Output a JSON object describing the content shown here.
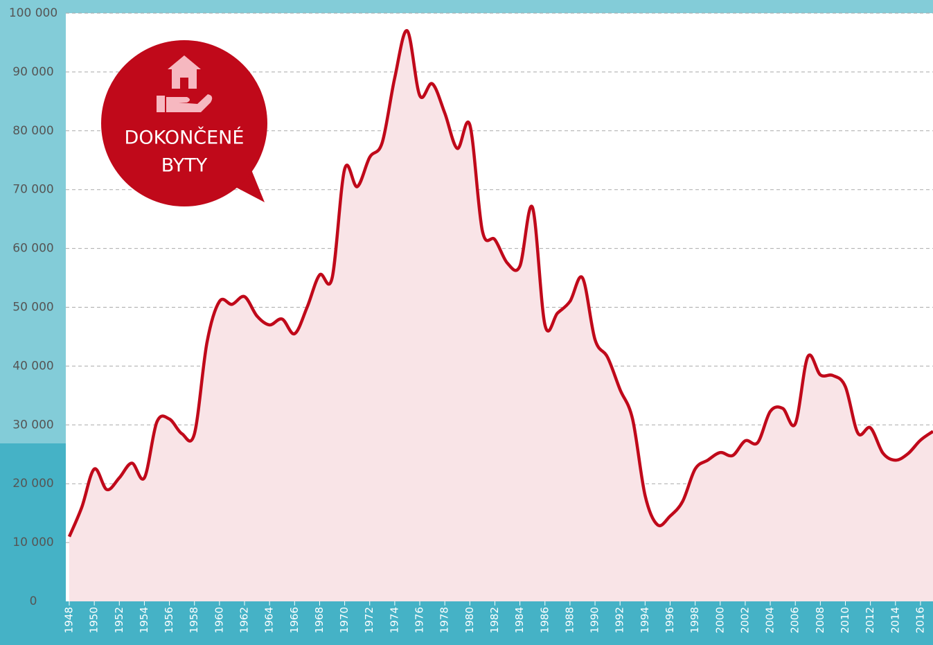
{
  "chart_data": {
    "type": "line",
    "annotation": [
      "DOKONČENÉ",
      "BYTY"
    ],
    "x": [
      1948,
      1949,
      1950,
      1951,
      1952,
      1953,
      1954,
      1955,
      1956,
      1957,
      1958,
      1959,
      1960,
      1961,
      1962,
      1963,
      1964,
      1965,
      1966,
      1967,
      1968,
      1969,
      1970,
      1971,
      1972,
      1973,
      1974,
      1975,
      1976,
      1977,
      1978,
      1979,
      1980,
      1981,
      1982,
      1983,
      1984,
      1985,
      1986,
      1987,
      1988,
      1989,
      1990,
      1991,
      1992,
      1993,
      1994,
      1995,
      1996,
      1997,
      1998,
      1999,
      2000,
      2001,
      2002,
      2003,
      2004,
      2005,
      2006,
      2007,
      2008,
      2009,
      2010,
      2011,
      2012,
      2013,
      2014,
      2015,
      2016,
      2017
    ],
    "values": [
      11000,
      16000,
      22500,
      19000,
      21000,
      23500,
      21000,
      30500,
      31000,
      28500,
      28500,
      44000,
      51000,
      50500,
      51800,
      48500,
      47000,
      48000,
      45500,
      50000,
      55500,
      55000,
      73500,
      70500,
      75500,
      78000,
      89000,
      97000,
      86000,
      88000,
      83000,
      77000,
      81000,
      63000,
      61500,
      57500,
      57000,
      67000,
      47000,
      49000,
      51000,
      55000,
      44500,
      41500,
      36000,
      31000,
      18000,
      13000,
      14500,
      17000,
      22500,
      24000,
      25300,
      24800,
      27300,
      27000,
      32300,
      32800,
      30200,
      41600,
      38500,
      38400,
      36500,
      28600,
      29500,
      25200,
      24000,
      25100,
      27400,
      28900
    ],
    "color": "#c0091a",
    "fill": "#f9e4e7",
    "xlim": [
      1948,
      2017
    ],
    "xticks": [
      1948,
      1950,
      1952,
      1954,
      1956,
      1958,
      1960,
      1962,
      1964,
      1966,
      1968,
      1970,
      1972,
      1974,
      1976,
      1978,
      1980,
      1982,
      1984,
      1986,
      1988,
      1990,
      1992,
      1994,
      1996,
      1998,
      2000,
      2002,
      2004,
      2006,
      2008,
      2010,
      2012,
      2014,
      2016
    ],
    "ylim": [
      0,
      100000
    ],
    "yticks": [
      0,
      {
        "value": 10000,
        "label": "10 000"
      },
      {
        "value": 20000,
        "label": "20 000"
      },
      {
        "value": 30000,
        "label": "30 000"
      },
      {
        "value": 40000,
        "label": "40 000"
      },
      {
        "value": 50000,
        "label": "50 000"
      },
      {
        "value": 60000,
        "label": "60 000"
      },
      {
        "value": 70000,
        "label": "70 000"
      },
      {
        "value": 80000,
        "label": "80 000"
      },
      {
        "value": 90000,
        "label": "90 000"
      },
      {
        "value": 100000,
        "label": "100 000"
      }
    ],
    "grid": true
  }
}
